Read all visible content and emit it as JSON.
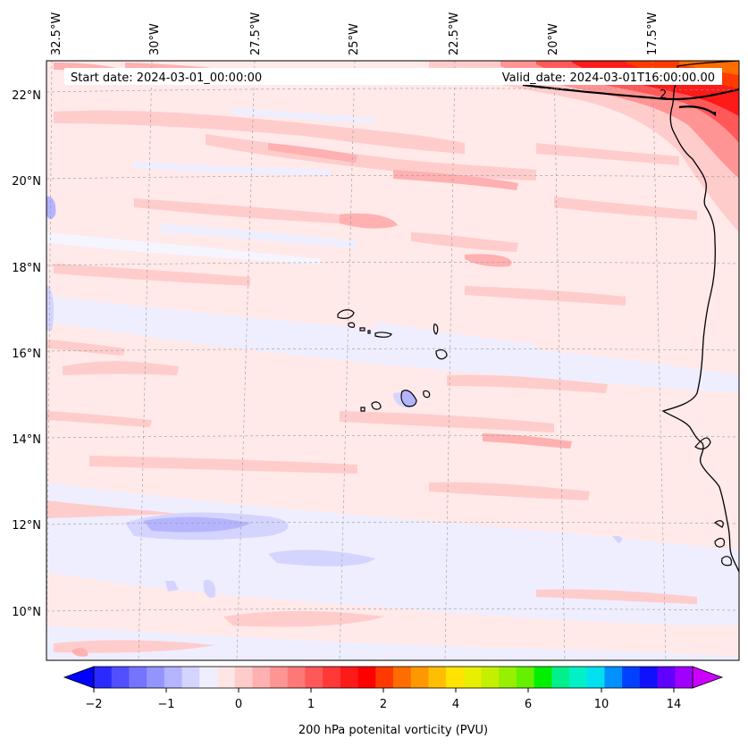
{
  "header": {
    "start_label": "Start date: 2024-03-01_00:00:00",
    "valid_label": "Valid_date: 2024-03-01T16:00:00.00"
  },
  "map": {
    "region": "Eastern North Atlantic / Cape Verde / West African coast",
    "lon_labels": [
      "32.5°W",
      "30°W",
      "27.5°W",
      "25°W",
      "22.5°W",
      "20°W",
      "17.5°W"
    ],
    "lat_labels": [
      "22°N",
      "20°N",
      "18°N",
      "16°N",
      "14°N",
      "12°N",
      "10°N"
    ],
    "contour_label": "2"
  },
  "colorbar": {
    "title": "200 hPa potenital vorticity (PVU)",
    "ticks": [
      "−2",
      "−1",
      "0",
      "1",
      "2",
      "4",
      "6",
      "10",
      "14"
    ],
    "colors": [
      "#0000ff",
      "#2a2aff",
      "#5050ff",
      "#7474ff",
      "#9494ff",
      "#b4b4ff",
      "#d4d4ff",
      "#eeeeff",
      "#ffe6e6",
      "#ffcccc",
      "#ffb0b0",
      "#ff9494",
      "#ff7878",
      "#ff5858",
      "#ff3838",
      "#ff1a1a",
      "#ff0000",
      "#ff3a00",
      "#ff6c00",
      "#ff9800",
      "#ffbf00",
      "#ffe400",
      "#e8f000",
      "#c4f000",
      "#96f000",
      "#64f000",
      "#00f000",
      "#00f08c",
      "#00f0c8",
      "#00e0f0",
      "#0090ff",
      "#0040ff",
      "#1010ff",
      "#6000ff",
      "#a000ff",
      "#ff00ff"
    ]
  }
}
